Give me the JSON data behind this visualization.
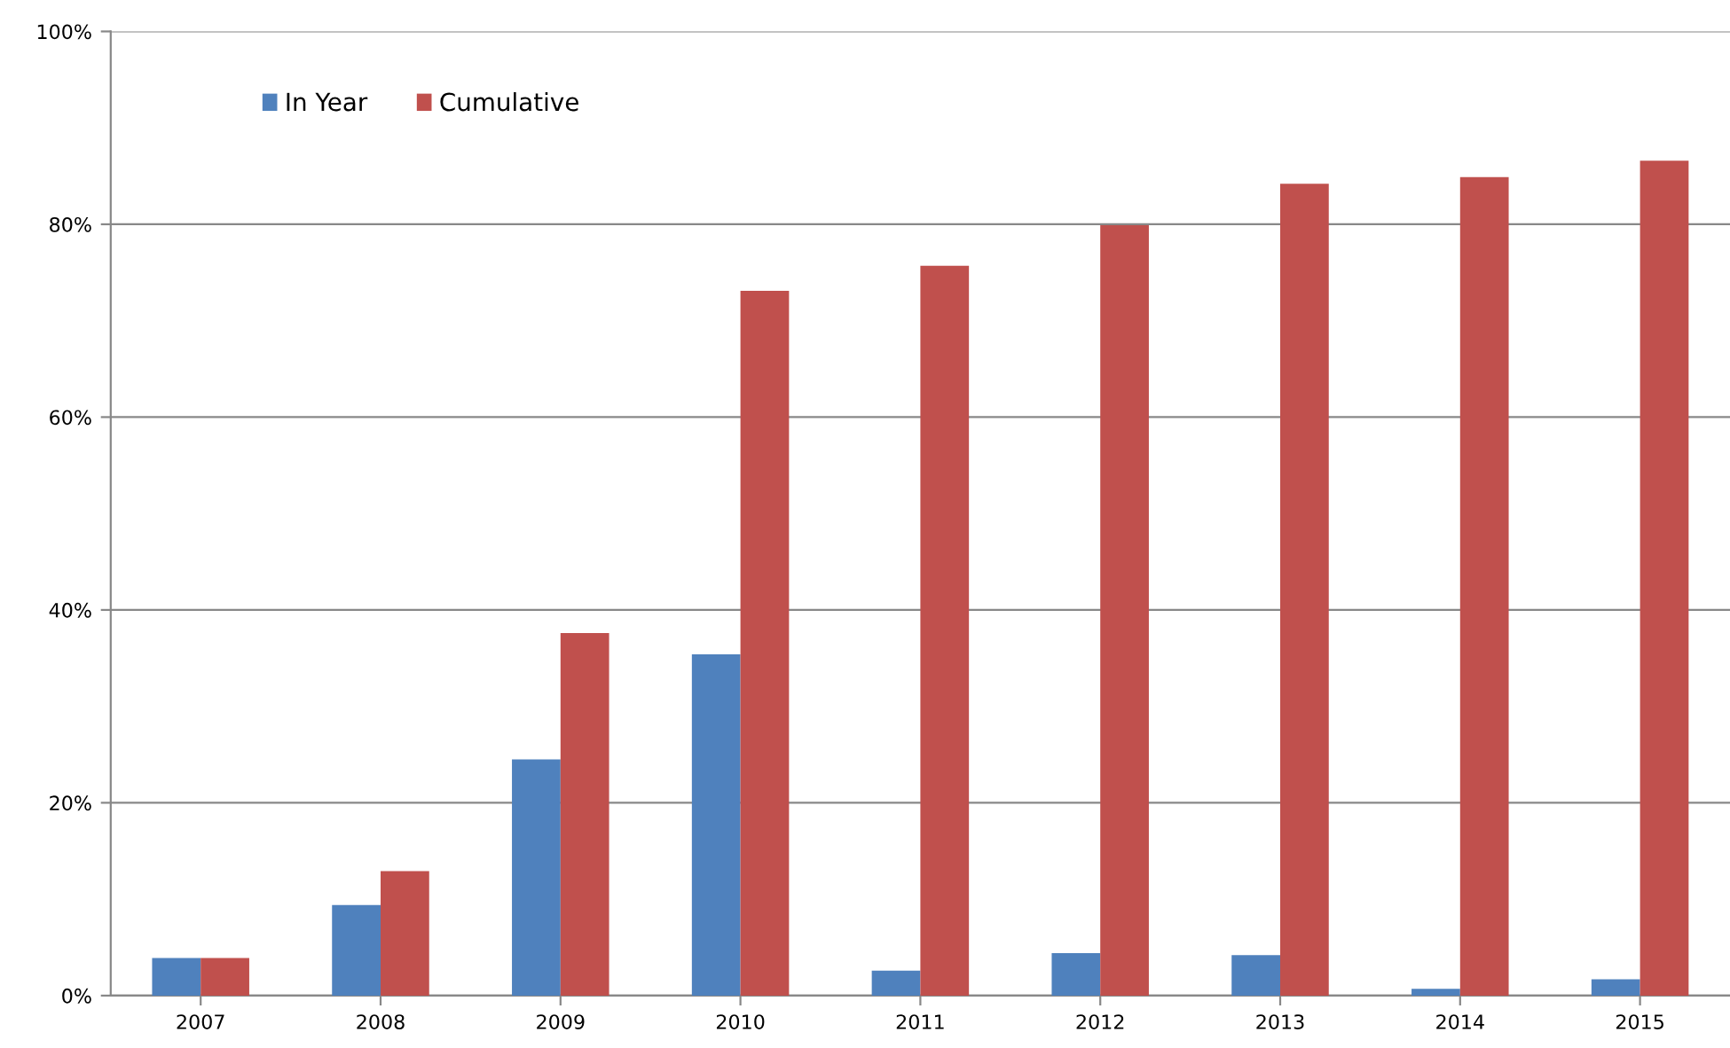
{
  "chart_data": {
    "type": "bar",
    "categories": [
      "2007",
      "2008",
      "2009",
      "2010",
      "2011",
      "2012",
      "2013",
      "2014",
      "2015"
    ],
    "series": [
      {
        "name": "In Year",
        "color": "#4f81bd",
        "values": [
          3.9,
          9.4,
          24.5,
          35.4,
          2.6,
          4.4,
          4.2,
          0.7,
          1.7
        ]
      },
      {
        "name": "Cumulative",
        "color": "#c0504d",
        "values": [
          3.9,
          12.9,
          37.6,
          73.1,
          75.7,
          79.9,
          84.2,
          84.9,
          86.6
        ]
      }
    ],
    "ylim": [
      0,
      100
    ],
    "yticks": [
      {
        "value": 0,
        "label": "0%"
      },
      {
        "value": 20,
        "label": "20%"
      },
      {
        "value": 40,
        "label": "40%"
      },
      {
        "value": 60,
        "label": "60%"
      },
      {
        "value": 80,
        "label": "80%"
      },
      {
        "value": 100,
        "label": "100%"
      }
    ],
    "grid": "y",
    "legend": "top left"
  }
}
